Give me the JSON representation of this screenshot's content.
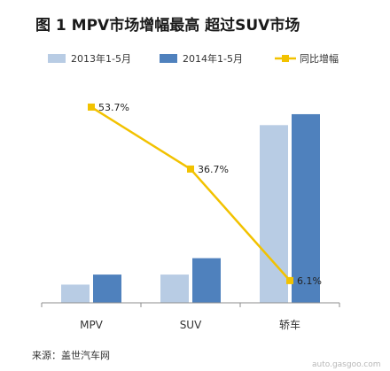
{
  "chart_data": {
    "type": "bar",
    "title": "图 1  MPV市场增幅最高  超过SUV市场",
    "categories": [
      "MPV",
      "SUV",
      "轿车"
    ],
    "series": [
      {
        "name": "2013年1-5月",
        "type": "bar",
        "color": "#b8cce4",
        "values": [
          20,
          31,
          195
        ]
      },
      {
        "name": "2014年1-5月",
        "type": "bar",
        "color": "#4f81bd",
        "values": [
          31,
          49,
          207
        ]
      },
      {
        "name": "同比增幅",
        "type": "line",
        "color": "#f2c200",
        "values": [
          53.7,
          36.7,
          6.1
        ],
        "labels": [
          "53.7%",
          "36.7%",
          "6.1%"
        ],
        "unit": "%"
      }
    ],
    "legend_position": "top",
    "grid": false,
    "bar_value_range": [
      0,
      240
    ],
    "growth_range": [
      0,
      60
    ]
  },
  "source": "来源：盖世汽车网",
  "watermark": "auto.gasgoo.com"
}
